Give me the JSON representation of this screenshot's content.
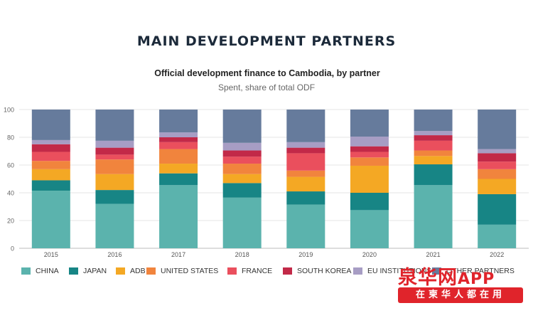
{
  "page": {
    "main_title": "MAIN DEVELOPMENT PARTNERS",
    "chart_title": "Official development finance to Cambodia, by partner",
    "chart_subtitle": "Spent, share of total ODF"
  },
  "watermark": {
    "brand": "泉华网",
    "app": "APP",
    "slogan": "在柬华人都在用"
  },
  "chart_data": {
    "type": "bar",
    "stacked": true,
    "title": "Official development finance to Cambodia, by partner",
    "subtitle": "Spent, share of total ODF",
    "categories": [
      "2015",
      "2016",
      "2017",
      "2018",
      "2019",
      "2020",
      "2021",
      "2022"
    ],
    "ylim": [
      0,
      100
    ],
    "yticks": [
      0,
      20,
      40,
      60,
      80,
      100
    ],
    "grid": true,
    "legend_position": "bottom",
    "series": [
      {
        "name": "CHINA",
        "color": "#5bb3ad",
        "values": [
          41.5,
          32,
          45.5,
          36.5,
          31.5,
          27.5,
          45.5,
          17
        ]
      },
      {
        "name": "JAPAN",
        "color": "#178585",
        "values": [
          7.5,
          10,
          8.5,
          10.5,
          9.5,
          12.5,
          15,
          22
        ]
      },
      {
        "name": "ADB",
        "color": "#f4a824",
        "values": [
          8,
          11.5,
          7,
          6.5,
          10.5,
          19.5,
          6,
          11
        ]
      },
      {
        "name": "UNITED STATES",
        "color": "#f1843d",
        "values": [
          6,
          10.5,
          10.5,
          7.5,
          4.5,
          6,
          4,
          7
        ]
      },
      {
        "name": "FRANCE",
        "color": "#ea4f5d",
        "values": [
          6.5,
          3.5,
          5,
          5,
          12.5,
          4,
          7,
          5.5
        ]
      },
      {
        "name": "SOUTH KOREA",
        "color": "#c22948",
        "values": [
          5.5,
          5,
          3.5,
          4.5,
          4,
          4,
          4,
          6
        ]
      },
      {
        "name": "EU INSTITUTIONS",
        "color": "#a79dc4",
        "values": [
          3,
          5,
          3.5,
          5.5,
          4,
          7,
          3,
          3
        ]
      },
      {
        "name": "OTHER PARTNERS",
        "color": "#667b9c",
        "values": [
          22,
          22.5,
          16.5,
          24,
          23.5,
          19.5,
          15.5,
          28.5
        ]
      }
    ]
  }
}
